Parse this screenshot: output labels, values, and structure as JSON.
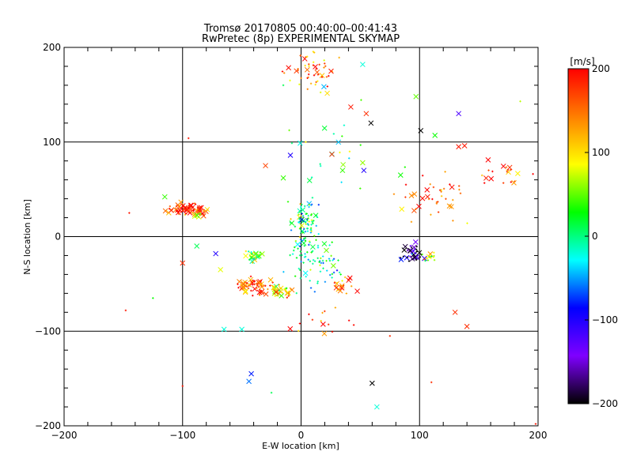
{
  "chart_data": {
    "type": "scatter",
    "title": "Tromsø 20170805 00:40:00–00:41:43",
    "subtitle": "RwPretec (8p) EXPERIMENTAL SKYMAP",
    "xlabel": "E-W location [km]",
    "ylabel": "N-S location [km]",
    "xlim": [
      -200,
      200
    ],
    "ylim": [
      -200,
      200
    ],
    "grid": true,
    "xticks": [
      "−200",
      "−100",
      "0",
      "100",
      "200"
    ],
    "yticks": [
      "−200",
      "−100",
      "0",
      "100",
      "200"
    ],
    "colorbar": {
      "label": "[m/s]",
      "range": [
        -200,
        200
      ],
      "ticks": [
        "200",
        "100",
        "0",
        "−100",
        "−200"
      ],
      "colors": [
        "#000000",
        "#7f00ff",
        "#0000ff",
        "#00ffff",
        "#00ff00",
        "#ffff00",
        "#ff7f00",
        "#ff0000"
      ]
    },
    "clusters": [
      {
        "center": [
          -97,
          29
        ],
        "spread": [
          15,
          6
        ],
        "velocity": 180,
        "count": 60,
        "x_ratio": 0.55
      },
      {
        "center": [
          -87,
          23
        ],
        "spread": [
          5,
          3
        ],
        "velocity": 80,
        "count": 10,
        "x_ratio": 0.5
      },
      {
        "center": [
          -40,
          -52
        ],
        "spread": [
          12,
          8
        ],
        "velocity": 175,
        "count": 55,
        "x_ratio": 0.5
      },
      {
        "center": [
          -15,
          -58
        ],
        "spread": [
          8,
          6
        ],
        "velocity": 100,
        "count": 35,
        "x_ratio": 0.45
      },
      {
        "center": [
          -40,
          -20
        ],
        "spread": [
          6,
          6
        ],
        "velocity": 40,
        "count": 30,
        "x_ratio": 0.5
      },
      {
        "center": [
          3,
          12
        ],
        "spread": [
          10,
          20
        ],
        "velocity": 15,
        "count": 90,
        "x_ratio": 0.15
      },
      {
        "center": [
          10,
          -25
        ],
        "spread": [
          16,
          20
        ],
        "velocity": -10,
        "count": 70,
        "x_ratio": 0.12
      },
      {
        "center": [
          95,
          -18
        ],
        "spread": [
          8,
          8
        ],
        "velocity": -170,
        "count": 40,
        "x_ratio": 0.35
      },
      {
        "center": [
          108,
          -22
        ],
        "spread": [
          5,
          4
        ],
        "velocity": 75,
        "count": 14,
        "x_ratio": 0.3
      },
      {
        "center": [
          10,
          175
        ],
        "spread": [
          18,
          16
        ],
        "velocity": 160,
        "count": 50,
        "x_ratio": 0.2
      },
      {
        "center": [
          110,
          40
        ],
        "spread": [
          25,
          18
        ],
        "velocity": 170,
        "count": 40,
        "x_ratio": 0.3
      },
      {
        "center": [
          170,
          70
        ],
        "spread": [
          15,
          15
        ],
        "velocity": 180,
        "count": 20,
        "x_ratio": 0.35
      },
      {
        "center": [
          35,
          -50
        ],
        "spread": [
          10,
          8
        ],
        "velocity": 160,
        "count": 20,
        "x_ratio": 0.4
      },
      {
        "center": [
          25,
          95
        ],
        "spread": [
          35,
          40
        ],
        "velocity": 20,
        "count": 25,
        "x_ratio": 0.35
      },
      {
        "center": [
          20,
          -90
        ],
        "spread": [
          20,
          15
        ],
        "velocity": 170,
        "count": 15,
        "x_ratio": 0.3
      }
    ],
    "points": [
      {
        "x": -100,
        "y": -28,
        "v": 180,
        "m": "x"
      },
      {
        "x": -115,
        "y": 42,
        "v": 40,
        "m": "x"
      },
      {
        "x": -72,
        "y": -18,
        "v": -100,
        "m": "x"
      },
      {
        "x": -88,
        "y": -10,
        "v": 10,
        "m": "x"
      },
      {
        "x": -68,
        "y": -35,
        "v": 80,
        "m": "x"
      },
      {
        "x": -65,
        "y": -98,
        "v": -20,
        "m": "x"
      },
      {
        "x": -50,
        "y": -98,
        "v": -20,
        "m": "x"
      },
      {
        "x": -42,
        "y": -145,
        "v": -80,
        "m": "x"
      },
      {
        "x": -44,
        "y": -153,
        "v": -60,
        "m": "x"
      },
      {
        "x": -15,
        "y": 62,
        "v": 40,
        "m": "x"
      },
      {
        "x": -9,
        "y": 86,
        "v": -100,
        "m": "x"
      },
      {
        "x": 42,
        "y": 137,
        "v": 190,
        "m": "x"
      },
      {
        "x": 55,
        "y": 130,
        "v": 180,
        "m": "x"
      },
      {
        "x": 59,
        "y": 120,
        "v": -200,
        "m": "x"
      },
      {
        "x": 52,
        "y": 182,
        "v": -20,
        "m": "x"
      },
      {
        "x": 101,
        "y": 112,
        "v": -200,
        "m": "x"
      },
      {
        "x": 133,
        "y": 130,
        "v": -120,
        "m": "x"
      },
      {
        "x": 113,
        "y": 107,
        "v": 30,
        "m": "x"
      },
      {
        "x": 97,
        "y": 148,
        "v": 50,
        "m": "x"
      },
      {
        "x": 53,
        "y": 70,
        "v": -100,
        "m": "x"
      },
      {
        "x": 35,
        "y": 70,
        "v": 40,
        "m": "x"
      },
      {
        "x": 26,
        "y": 87,
        "v": 180,
        "m": "x"
      },
      {
        "x": 84,
        "y": 65,
        "v": 30,
        "m": "x"
      },
      {
        "x": 60,
        "y": -155,
        "v": -200,
        "m": "x"
      },
      {
        "x": 64,
        "y": -180,
        "v": -20,
        "m": "x"
      },
      {
        "x": 130,
        "y": -80,
        "v": 180,
        "m": "x"
      },
      {
        "x": 140,
        "y": -95,
        "v": 180,
        "m": "x"
      },
      {
        "x": -30,
        "y": 75,
        "v": 170,
        "m": "x"
      },
      {
        "x": 133,
        "y": 95,
        "v": 190,
        "m": "x"
      },
      {
        "x": 138,
        "y": 96,
        "v": 190,
        "m": "x"
      },
      {
        "x": -148,
        "y": -78,
        "v": 190,
        "m": "+"
      },
      {
        "x": -95,
        "y": 104,
        "v": 190,
        "m": "+"
      },
      {
        "x": 185,
        "y": 143,
        "v": 70,
        "m": "+"
      },
      {
        "x": 198,
        "y": -198,
        "v": 190,
        "m": "+"
      },
      {
        "x": 110,
        "y": -154,
        "v": 180,
        "m": "+"
      },
      {
        "x": 75,
        "y": -105,
        "v": 180,
        "m": "+"
      },
      {
        "x": -100,
        "y": -158,
        "v": 190,
        "m": "+"
      },
      {
        "x": -125,
        "y": -65,
        "v": 30,
        "m": "+"
      },
      {
        "x": -25,
        "y": -165,
        "v": 10,
        "m": "+"
      },
      {
        "x": -15,
        "y": 160,
        "v": 10,
        "m": "+"
      },
      {
        "x": -145,
        "y": 25,
        "v": 190,
        "m": "+"
      }
    ]
  }
}
